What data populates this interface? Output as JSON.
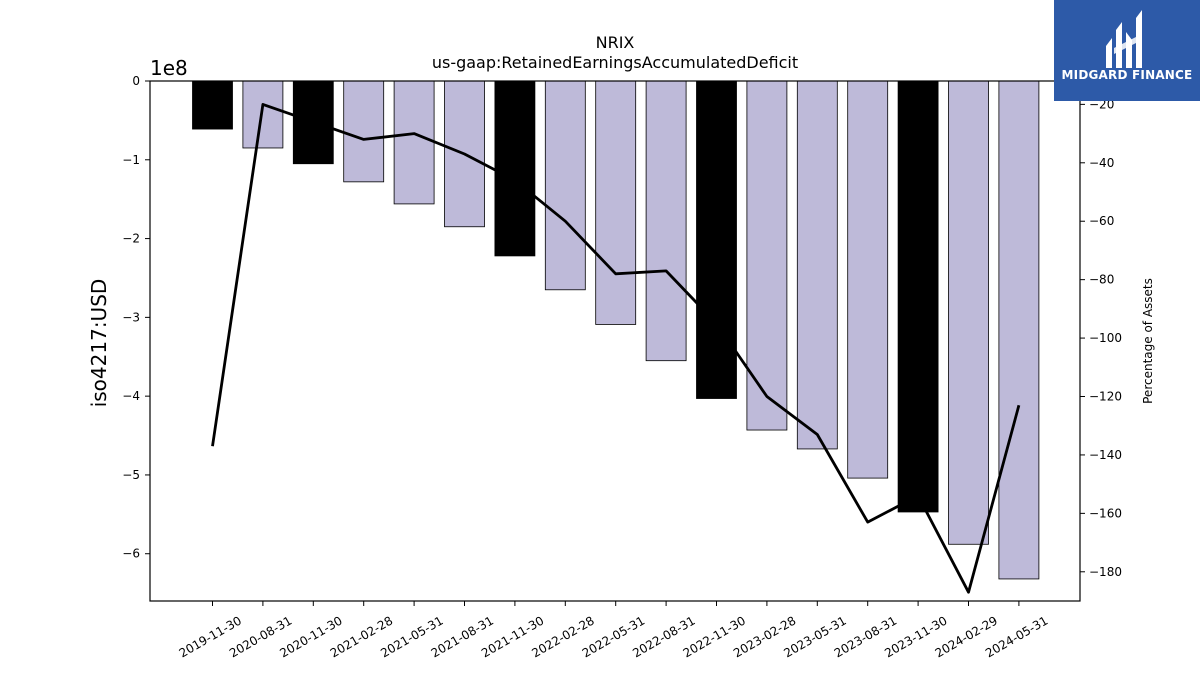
{
  "chart_data": {
    "type": "bar",
    "title": "NRIX",
    "subtitle": "us-gaap:RetainedEarningsAccumulatedDeficit",
    "ylabel": "iso4217:USD",
    "ylabel_right": "Percentage of Assets",
    "y_offset_label": "1e8",
    "ylim": [
      -6.6,
      0
    ],
    "ylim_right": [
      -190,
      -12
    ],
    "yticks": [
      "0",
      "−1",
      "−2",
      "−3",
      "−4",
      "−5",
      "−6"
    ],
    "yticks_right": [
      "−20",
      "−40",
      "−60",
      "−80",
      "−100",
      "−120",
      "−140",
      "−160",
      "−180"
    ],
    "categories": [
      "2019-11-30",
      "2020-08-31",
      "2020-11-30",
      "2021-02-28",
      "2021-05-31",
      "2021-08-31",
      "2021-11-30",
      "2022-02-28",
      "2022-05-31",
      "2022-08-31",
      "2022-11-30",
      "2023-02-28",
      "2023-05-31",
      "2023-08-31",
      "2023-11-30",
      "2024-02-29",
      "2024-05-31"
    ],
    "series": [
      {
        "values": [
          -0.61,
          -0.85,
          -1.05,
          -1.28,
          -1.56,
          -1.85,
          -2.22,
          -2.65,
          -3.09,
          -3.55,
          -4.03,
          -4.43,
          -4.67,
          -5.04,
          -5.47,
          -5.88,
          -6.32
        ],
        "colors": [
          "#000000",
          "#bebad9",
          "#000000",
          "#bebad9",
          "#bebad9",
          "#bebad9",
          "#000000",
          "#bebad9",
          "#bebad9",
          "#bebad9",
          "#000000",
          "#bebad9",
          "#bebad9",
          "#bebad9",
          "#000000",
          "#bebad9",
          "#bebad9"
        ]
      },
      {
        "axis": "right",
        "type": "line",
        "color": "#000000",
        "values": [
          -137,
          -20,
          -26,
          -32,
          -30,
          -37,
          -46,
          -60,
          -78,
          -77,
          -95,
          -120,
          -133,
          -163,
          -154,
          -187,
          -123
        ]
      }
    ]
  },
  "logo": {
    "text": "MIDGARD FINANCE",
    "color": "#2d5aa8"
  }
}
